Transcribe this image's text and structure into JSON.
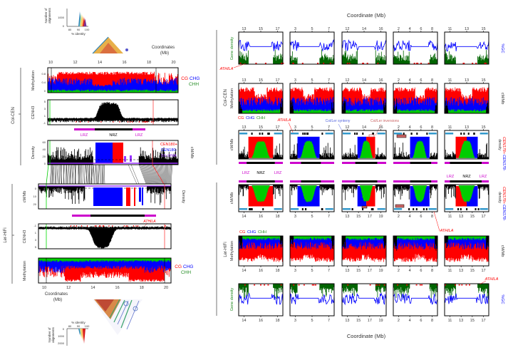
{
  "labels": {
    "col": "Col-CEN",
    "ler": "Ler-HiFi"
  },
  "left": {
    "coord_label_1": "Coordinates",
    "coord_label_2": "(Mb)",
    "col_ticks": [
      "10",
      "12",
      "14",
      "16",
      "18",
      "20"
    ],
    "ler_ticks": [
      "10",
      "12",
      "14",
      "16",
      "18",
      "20"
    ],
    "ylabel_methylation": "Methylation",
    "ylabel_cenh3": "CENH3",
    "ylabel_density": "Density",
    "ylabel_cm": "cM/Mb",
    "meth_ticks_col": [
      "0",
      "0.4",
      "0.8"
    ],
    "cenh3_ticks_col": [
      "-1",
      "1",
      "3",
      "5"
    ],
    "density_ticks": [
      "0",
      "20",
      "40",
      "60"
    ],
    "cm_ticks": [
      "0",
      "10",
      "20"
    ]
  },
  "inset_top": {
    "ylabel_1": "Number of",
    "ylabel_2": "alignments",
    "yticks": [
      "0",
      "1000"
    ],
    "xticks": [
      "80",
      "90",
      "100"
    ],
    "xlabel": "% identity"
  },
  "inset_bottom": {
    "ylabel_1": "Number of",
    "ylabel_2": "alignments",
    "yticks": [
      "0",
      "1000",
      "2000"
    ],
    "xticks": [
      "80",
      "90",
      "100"
    ],
    "xlabel": "% identity"
  },
  "legend": {
    "cg": "CG",
    "chg": "CHG",
    "chh": "CHH",
    "cen180_plus": "CEN180+",
    "cen180_minus": "CEN180-",
    "rdna": "5S rDNA",
    "cen178_plus": "CEN178+",
    "cen178_minus": "CEN178-",
    "density": "density"
  },
  "zones": {
    "lrz": "LRZ",
    "nrz": "NRZ"
  },
  "annotations": {
    "athila": "ATHILA",
    "synteny": "Col/Ler synteny",
    "inversions": "Col/Ler inversions"
  },
  "right": {
    "title": "Coordinate (Mb)",
    "ylabel_gene_density": "Gene density",
    "ylabel_gc": "%GC",
    "ylabel_methylation": "Methylation",
    "ylabel_cm": "cM/Mb",
    "col_ticks": [
      [
        "13",
        "15",
        "17"
      ],
      [
        "3",
        "5",
        "7"
      ],
      [
        "12",
        "14",
        "16"
      ],
      [
        "2",
        "4",
        "6",
        "8"
      ],
      [
        "11",
        "13",
        "15"
      ]
    ],
    "ler_ticks": [
      [
        "14",
        "16",
        "18"
      ],
      [
        "3",
        "5",
        "7"
      ],
      [
        "13",
        "15",
        "17",
        "19"
      ],
      [
        "2",
        "4",
        "6",
        "8"
      ],
      [
        "11",
        "13",
        "15",
        "17"
      ]
    ]
  },
  "colors": {
    "cg": "#ff0000",
    "chg": "#0000ff",
    "chh": "#00cc00",
    "gene": "#006400",
    "lrz": "#cc00cc",
    "rdna": "#9933ff",
    "synteny": "#3399cc",
    "inversion": "#cc6666"
  }
}
